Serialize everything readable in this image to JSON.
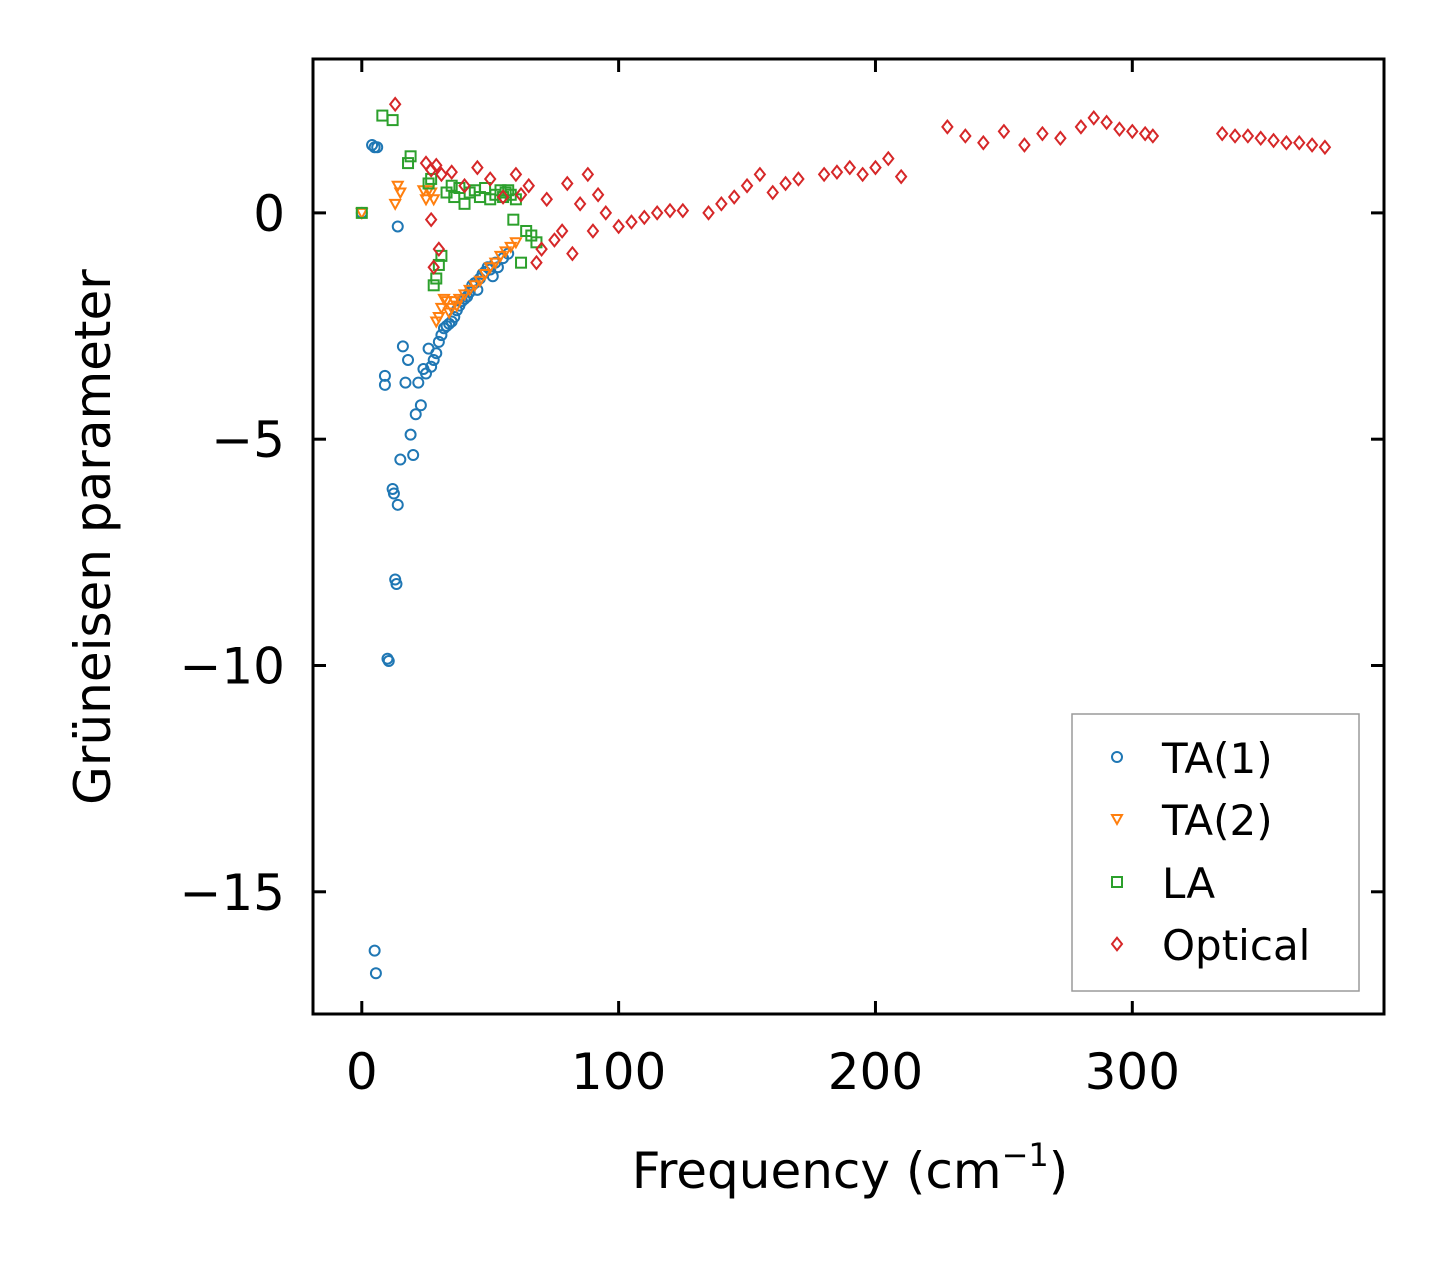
{
  "chart_data": {
    "type": "scatter",
    "title": "",
    "xlabel": "Frequency (cm",
    "xlabel_sup": "−1",
    "xlabel_close": ")",
    "ylabel": "Grüneisen parameter",
    "xlim": [
      -19,
      398
    ],
    "ylim": [
      -17.7,
      3.4
    ],
    "xticks": [
      0,
      100,
      200,
      300
    ],
    "xtick_labels": [
      "0",
      "100",
      "200",
      "300"
    ],
    "yticks": [
      0,
      -5,
      -10,
      -15
    ],
    "ytick_labels": [
      "0",
      "−5",
      "−10",
      "−15"
    ],
    "grid": false,
    "legend_position": "lower-right",
    "series": [
      {
        "name": "TA(1)",
        "marker": "circle",
        "color": "#1f77b4",
        "x": [
          0,
          4,
          5,
          6,
          5,
          5.5,
          9,
          9,
          10,
          10.5,
          12,
          12.5,
          13,
          13.5,
          14,
          14,
          15,
          16,
          17,
          18,
          19,
          20,
          21,
          22,
          23,
          24,
          25,
          26,
          27,
          28,
          29,
          30,
          31,
          32,
          33,
          34,
          35,
          36,
          37,
          38,
          39,
          40,
          41,
          42,
          43,
          44,
          45,
          46,
          47,
          48,
          49,
          50,
          51,
          52,
          53,
          55,
          57
        ],
        "y": [
          0,
          1.5,
          1.45,
          1.45,
          -16.3,
          -16.8,
          -3.6,
          -3.8,
          -9.85,
          -9.9,
          -6.1,
          -6.2,
          -8.1,
          -8.2,
          -6.45,
          -0.3,
          -5.45,
          -2.95,
          -3.75,
          -3.25,
          -4.9,
          -5.35,
          -4.45,
          -3.75,
          -4.25,
          -3.45,
          -3.55,
          -3.0,
          -3.4,
          -3.25,
          -3.1,
          -2.85,
          -2.7,
          -2.55,
          -2.5,
          -2.45,
          -2.4,
          -2.3,
          -2.15,
          -2.05,
          -1.95,
          -1.9,
          -1.85,
          -1.75,
          -1.6,
          -1.55,
          -1.7,
          -1.45,
          -1.35,
          -1.3,
          -1.2,
          -1.25,
          -1.4,
          -1.1,
          -1.2,
          -1.0,
          -0.9
        ]
      },
      {
        "name": "TA(2)",
        "marker": "triangle-down",
        "color": "#ff7f0e",
        "x": [
          0,
          13,
          14,
          15,
          24,
          25,
          26,
          27,
          28,
          29,
          30,
          31,
          32,
          33,
          34,
          35,
          36,
          37,
          38,
          40,
          42,
          44,
          46,
          48,
          50,
          52,
          54,
          56,
          58,
          60
        ],
        "y": [
          0,
          0.2,
          0.6,
          0.45,
          0.5,
          0.3,
          0.5,
          0.45,
          0.3,
          -2.4,
          -2.3,
          -2.1,
          -1.9,
          -1.95,
          -2.2,
          -2.1,
          -1.95,
          -2.05,
          -1.9,
          -1.8,
          -1.7,
          -1.6,
          -1.5,
          -1.35,
          -1.2,
          -1.1,
          -0.95,
          -0.85,
          -0.75,
          -0.65
        ]
      },
      {
        "name": "LA",
        "marker": "square",
        "color": "#2ca02c",
        "x": [
          0,
          8,
          12,
          18,
          19,
          26,
          27,
          28,
          29,
          30,
          31,
          33,
          35,
          36,
          38,
          40,
          42,
          44,
          46,
          48,
          50,
          52,
          54,
          55,
          56,
          57,
          58,
          59,
          60,
          62,
          64,
          66,
          68
        ],
        "y": [
          0,
          2.15,
          2.05,
          1.1,
          1.25,
          0.65,
          0.75,
          -1.6,
          -1.45,
          -1.15,
          -0.95,
          0.45,
          0.6,
          0.35,
          0.55,
          0.2,
          0.45,
          0.5,
          0.35,
          0.55,
          0.3,
          0.4,
          0.5,
          0.35,
          0.45,
          0.5,
          0.4,
          -0.15,
          0.3,
          -1.1,
          -0.4,
          -0.5,
          -0.65
        ]
      },
      {
        "name": "Optical",
        "marker": "diamond",
        "color": "#d62728",
        "x": [
          13,
          25,
          27,
          29,
          31,
          28,
          30,
          27,
          35,
          40,
          45,
          50,
          55,
          60,
          62,
          65,
          68,
          70,
          72,
          75,
          78,
          80,
          82,
          85,
          88,
          90,
          92,
          95,
          100,
          105,
          110,
          115,
          120,
          125,
          135,
          140,
          145,
          150,
          155,
          160,
          165,
          170,
          180,
          185,
          190,
          195,
          200,
          205,
          210,
          228,
          235,
          242,
          250,
          258,
          265,
          272,
          280,
          285,
          290,
          295,
          300,
          305,
          308,
          335,
          340,
          345,
          350,
          355,
          360,
          365,
          370,
          375
        ],
        "y": [
          2.4,
          1.1,
          0.95,
          1.05,
          0.85,
          -1.2,
          -0.8,
          -0.15,
          0.9,
          0.6,
          1.0,
          0.75,
          0.35,
          0.85,
          0.4,
          0.6,
          -1.1,
          -0.8,
          0.3,
          -0.6,
          -0.4,
          0.65,
          -0.9,
          0.2,
          0.85,
          -0.4,
          0.4,
          0.0,
          -0.3,
          -0.2,
          -0.1,
          0.0,
          0.05,
          0.05,
          0.0,
          0.2,
          0.35,
          0.6,
          0.85,
          0.45,
          0.65,
          0.75,
          0.85,
          0.9,
          1.0,
          0.85,
          1.0,
          1.2,
          0.8,
          1.9,
          1.7,
          1.55,
          1.8,
          1.5,
          1.75,
          1.65,
          1.9,
          2.1,
          2.0,
          1.85,
          1.8,
          1.75,
          1.7,
          1.75,
          1.7,
          1.7,
          1.65,
          1.6,
          1.55,
          1.55,
          1.5,
          1.45
        ]
      }
    ]
  }
}
